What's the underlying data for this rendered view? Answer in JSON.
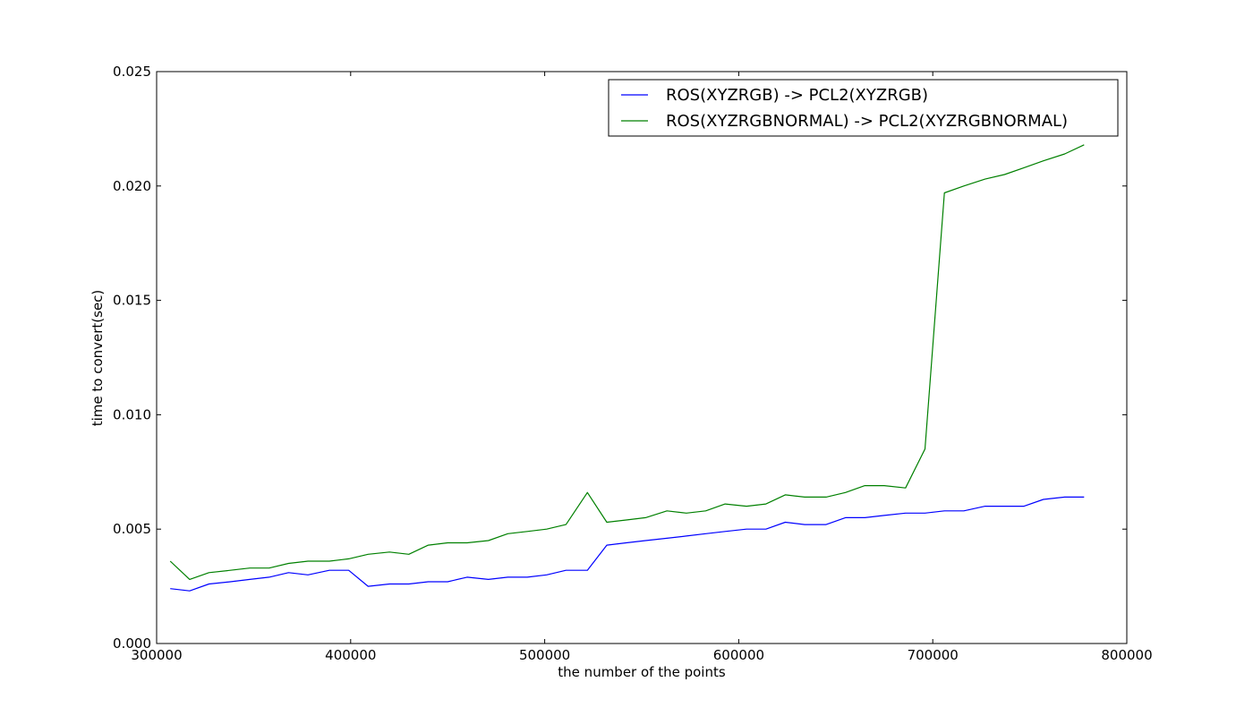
{
  "chart_data": {
    "type": "line",
    "title": "",
    "xlabel": "the number of the points",
    "ylabel": "time to convert(sec)",
    "xlim": [
      300000,
      800000
    ],
    "ylim": [
      0,
      0.025
    ],
    "x_ticks": [
      300000,
      400000,
      500000,
      600000,
      700000,
      800000
    ],
    "x_tick_labels": [
      "300000",
      "400000",
      "500000",
      "600000",
      "700000",
      "800000"
    ],
    "y_ticks": [
      0,
      0.005,
      0.01,
      0.015,
      0.02,
      0.025
    ],
    "y_tick_labels": [
      "0.000",
      "0.005",
      "0.010",
      "0.015",
      "0.020",
      "0.025"
    ],
    "grid": false,
    "legend_position": "top-right",
    "x": [
      307000,
      317000,
      327000,
      338000,
      348000,
      358000,
      368000,
      378000,
      389000,
      399000,
      409000,
      420000,
      430000,
      440000,
      450000,
      460000,
      471000,
      481000,
      491000,
      501000,
      511000,
      522000,
      532000,
      542000,
      552000,
      563000,
      573000,
      583000,
      593000,
      604000,
      614000,
      624000,
      634000,
      645000,
      655000,
      665000,
      675000,
      686000,
      696000,
      706000,
      716000,
      727000,
      737000,
      747000,
      757000,
      768000,
      778000
    ],
    "series": [
      {
        "name": "ROS(XYZRGB) -> PCL2(XYZRGB)",
        "color": "#0000ff",
        "values": [
          0.0024,
          0.0023,
          0.0026,
          0.0027,
          0.0028,
          0.0029,
          0.0031,
          0.003,
          0.0032,
          0.0032,
          0.0025,
          0.0026,
          0.0026,
          0.0027,
          0.0027,
          0.0029,
          0.0028,
          0.0029,
          0.0029,
          0.003,
          0.0032,
          0.0032,
          0.0043,
          0.0044,
          0.0045,
          0.0046,
          0.0047,
          0.0048,
          0.0049,
          0.005,
          0.005,
          0.0053,
          0.0052,
          0.0052,
          0.0055,
          0.0055,
          0.0056,
          0.0057,
          0.0057,
          0.0058,
          0.0058,
          0.006,
          0.006,
          0.006,
          0.0063,
          0.0064,
          0.0064
        ]
      },
      {
        "name": "ROS(XYZRGBNORMAL) -> PCL2(XYZRGBNORMAL)",
        "color": "#008000",
        "values": [
          0.0036,
          0.0028,
          0.0031,
          0.0032,
          0.0033,
          0.0033,
          0.0035,
          0.0036,
          0.0036,
          0.0037,
          0.0039,
          0.004,
          0.0039,
          0.0043,
          0.0044,
          0.0044,
          0.0045,
          0.0048,
          0.0049,
          0.005,
          0.0052,
          0.0066,
          0.0053,
          0.0054,
          0.0055,
          0.0058,
          0.0057,
          0.0058,
          0.0061,
          0.006,
          0.0061,
          0.0065,
          0.0064,
          0.0064,
          0.0066,
          0.0069,
          0.0069,
          0.0068,
          0.0085,
          0.0197,
          0.02,
          0.0203,
          0.0205,
          0.0208,
          0.0211,
          0.0214,
          0.0218
        ]
      }
    ]
  }
}
